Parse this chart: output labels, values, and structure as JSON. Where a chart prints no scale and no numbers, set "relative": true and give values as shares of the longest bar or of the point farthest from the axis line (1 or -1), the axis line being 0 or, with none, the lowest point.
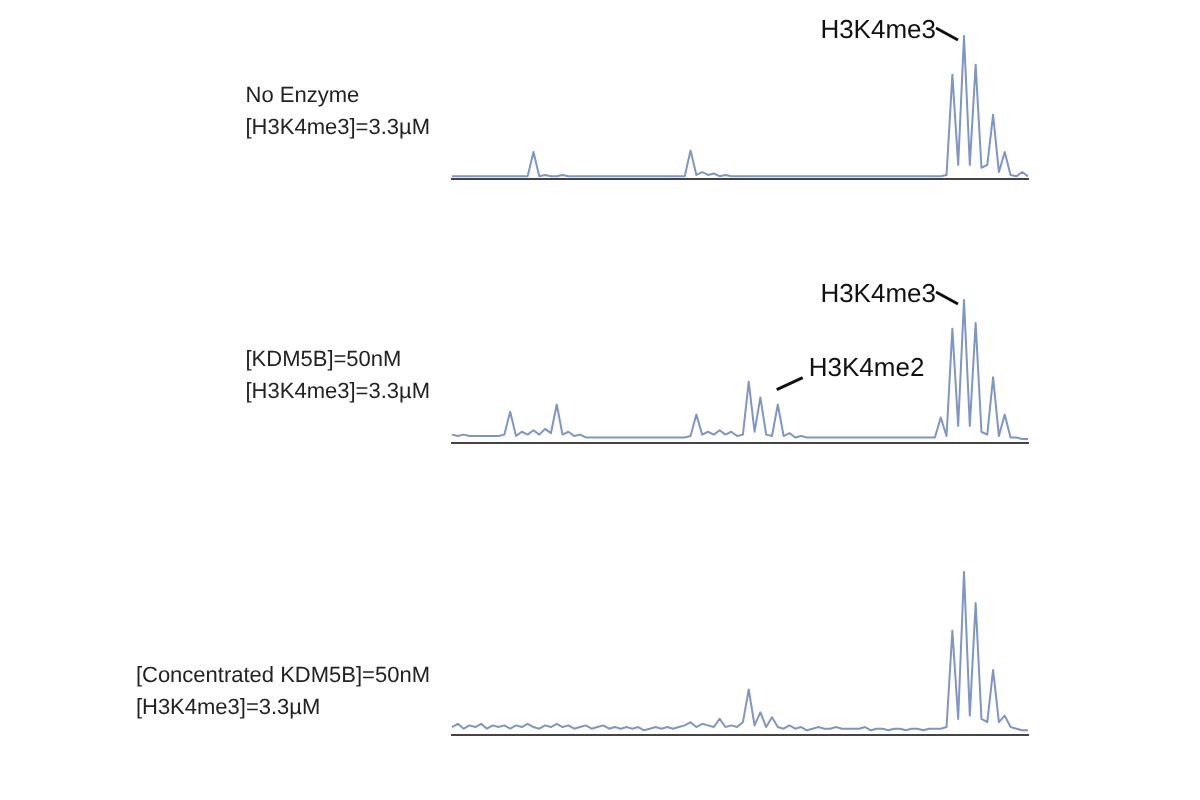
{
  "chart_data": [
    {
      "type": "line",
      "title": "No Enzyme\n[H3K4me3]=3.3µM",
      "relative": true,
      "grid": false,
      "marker": "none",
      "categories": [
        null,
        null,
        null,
        null,
        null,
        null,
        null,
        null,
        null,
        null,
        null,
        null,
        null,
        null,
        null,
        null,
        null,
        null,
        null,
        null,
        null,
        null,
        null,
        null,
        null,
        null,
        null,
        null,
        null,
        null,
        null,
        null,
        null,
        null,
        null,
        null,
        null,
        null,
        null,
        null,
        null,
        null,
        null,
        null,
        null,
        null,
        null,
        null,
        null,
        null,
        null,
        null,
        null,
        null,
        null,
        null,
        null,
        null,
        null,
        null,
        null,
        null,
        null,
        null,
        null,
        null,
        null,
        null,
        null,
        null,
        null,
        null,
        null,
        null,
        null,
        null,
        null,
        null,
        null,
        null,
        null,
        null,
        null,
        null,
        null,
        null,
        null,
        null,
        null,
        null,
        null,
        null,
        null,
        null,
        null,
        null,
        null,
        null,
        null,
        null
      ],
      "series": [
        {
          "color": "#7f95c4",
          "values": [
            0.02,
            0.02,
            0.02,
            0.02,
            0.02,
            0.02,
            0.02,
            0.02,
            0.02,
            0.02,
            0.02,
            0.02,
            0.02,
            0.02,
            0.19,
            0.02,
            0.03,
            0.02,
            0.02,
            0.03,
            0.02,
            0.02,
            0.02,
            0.02,
            0.02,
            0.02,
            0.02,
            0.02,
            0.02,
            0.02,
            0.02,
            0.02,
            0.02,
            0.02,
            0.02,
            0.02,
            0.02,
            0.02,
            0.02,
            0.02,
            0.02,
            0.2,
            0.03,
            0.05,
            0.03,
            0.04,
            0.02,
            0.03,
            0.02,
            0.02,
            0.02,
            0.02,
            0.02,
            0.02,
            0.02,
            0.02,
            0.02,
            0.02,
            0.02,
            0.02,
            0.02,
            0.02,
            0.02,
            0.02,
            0.02,
            0.02,
            0.02,
            0.02,
            0.02,
            0.02,
            0.02,
            0.02,
            0.02,
            0.02,
            0.02,
            0.02,
            0.02,
            0.02,
            0.02,
            0.02,
            0.02,
            0.02,
            0.02,
            0.02,
            0.02,
            0.03,
            0.73,
            0.1,
            1,
            0.1,
            0.8,
            0.08,
            0.1,
            0.45,
            0.05,
            0.19,
            0.03,
            0.02,
            0.05,
            0.02
          ]
        }
      ],
      "annotations": [
        "H3K4me3"
      ]
    },
    {
      "type": "line",
      "title": "[KDM5B]=50nM\n[H3K4me3]=3.3µM",
      "relative": true,
      "grid": false,
      "marker": "none",
      "categories": [
        null,
        null,
        null,
        null,
        null,
        null,
        null,
        null,
        null,
        null,
        null,
        null,
        null,
        null,
        null,
        null,
        null,
        null,
        null,
        null,
        null,
        null,
        null,
        null,
        null,
        null,
        null,
        null,
        null,
        null,
        null,
        null,
        null,
        null,
        null,
        null,
        null,
        null,
        null,
        null,
        null,
        null,
        null,
        null,
        null,
        null,
        null,
        null,
        null,
        null,
        null,
        null,
        null,
        null,
        null,
        null,
        null,
        null,
        null,
        null,
        null,
        null,
        null,
        null,
        null,
        null,
        null,
        null,
        null,
        null,
        null,
        null,
        null,
        null,
        null,
        null,
        null,
        null,
        null,
        null,
        null,
        null,
        null,
        null,
        null,
        null,
        null,
        null,
        null,
        null,
        null,
        null,
        null,
        null,
        null,
        null,
        null,
        null,
        null,
        null
      ],
      "series": [
        {
          "color": "#7f95c4",
          "values": [
            0.06,
            0.05,
            0.06,
            0.05,
            0.05,
            0.05,
            0.05,
            0.05,
            0.05,
            0.06,
            0.22,
            0.05,
            0.08,
            0.06,
            0.09,
            0.06,
            0.1,
            0.07,
            0.27,
            0.06,
            0.08,
            0.05,
            0.06,
            0.04,
            0.04,
            0.04,
            0.04,
            0.04,
            0.04,
            0.04,
            0.04,
            0.04,
            0.04,
            0.04,
            0.04,
            0.04,
            0.04,
            0.04,
            0.04,
            0.04,
            0.04,
            0.05,
            0.2,
            0.06,
            0.08,
            0.06,
            0.09,
            0.06,
            0.08,
            0.05,
            0.06,
            0.43,
            0.08,
            0.32,
            0.06,
            0.05,
            0.27,
            0.05,
            0.07,
            0.04,
            0.05,
            0.04,
            0.04,
            0.04,
            0.04,
            0.04,
            0.04,
            0.04,
            0.04,
            0.04,
            0.04,
            0.04,
            0.04,
            0.04,
            0.04,
            0.04,
            0.04,
            0.04,
            0.04,
            0.04,
            0.04,
            0.04,
            0.04,
            0.04,
            0.18,
            0.05,
            0.8,
            0.12,
            1,
            0.12,
            0.84,
            0.08,
            0.06,
            0.46,
            0.05,
            0.2,
            0.04,
            0.04,
            0.03,
            0.03
          ]
        }
      ],
      "annotations": [
        "H3K4me3",
        "H3K4me2"
      ]
    },
    {
      "type": "line",
      "title": "[Concentrated KDM5B]=50nM\n[H3K4me3]=3.3µM",
      "relative": true,
      "grid": false,
      "marker": "none",
      "categories": [
        null,
        null,
        null,
        null,
        null,
        null,
        null,
        null,
        null,
        null,
        null,
        null,
        null,
        null,
        null,
        null,
        null,
        null,
        null,
        null,
        null,
        null,
        null,
        null,
        null,
        null,
        null,
        null,
        null,
        null,
        null,
        null,
        null,
        null,
        null,
        null,
        null,
        null,
        null,
        null,
        null,
        null,
        null,
        null,
        null,
        null,
        null,
        null,
        null,
        null,
        null,
        null,
        null,
        null,
        null,
        null,
        null,
        null,
        null,
        null,
        null,
        null,
        null,
        null,
        null,
        null,
        null,
        null,
        null,
        null,
        null,
        null,
        null,
        null,
        null,
        null,
        null,
        null,
        null,
        null,
        null,
        null,
        null,
        null,
        null,
        null,
        null,
        null,
        null,
        null,
        null,
        null,
        null,
        null,
        null,
        null,
        null,
        null,
        null,
        null
      ],
      "series": [
        {
          "color": "#7f95c4",
          "values": [
            0.05,
            0.07,
            0.04,
            0.06,
            0.05,
            0.07,
            0.04,
            0.06,
            0.05,
            0.06,
            0.04,
            0.06,
            0.05,
            0.07,
            0.05,
            0.04,
            0.06,
            0.05,
            0.07,
            0.05,
            0.06,
            0.04,
            0.05,
            0.06,
            0.04,
            0.05,
            0.06,
            0.04,
            0.05,
            0.04,
            0.05,
            0.04,
            0.05,
            0.03,
            0.04,
            0.05,
            0.04,
            0.05,
            0.04,
            0.05,
            0.06,
            0.08,
            0.05,
            0.07,
            0.06,
            0.05,
            0.1,
            0.05,
            0.06,
            0.05,
            0.08,
            0.28,
            0.06,
            0.14,
            0.05,
            0.11,
            0.05,
            0.04,
            0.06,
            0.04,
            0.05,
            0.03,
            0.04,
            0.05,
            0.04,
            0.04,
            0.05,
            0.04,
            0.04,
            0.04,
            0.04,
            0.05,
            0.03,
            0.04,
            0.04,
            0.03,
            0.04,
            0.04,
            0.03,
            0.04,
            0.04,
            0.03,
            0.04,
            0.04,
            0.04,
            0.05,
            0.64,
            0.1,
            1,
            0.12,
            0.81,
            0.1,
            0.08,
            0.4,
            0.08,
            0.12,
            0.05,
            0.04,
            0.03,
            0.03
          ]
        }
      ]
    }
  ]
}
